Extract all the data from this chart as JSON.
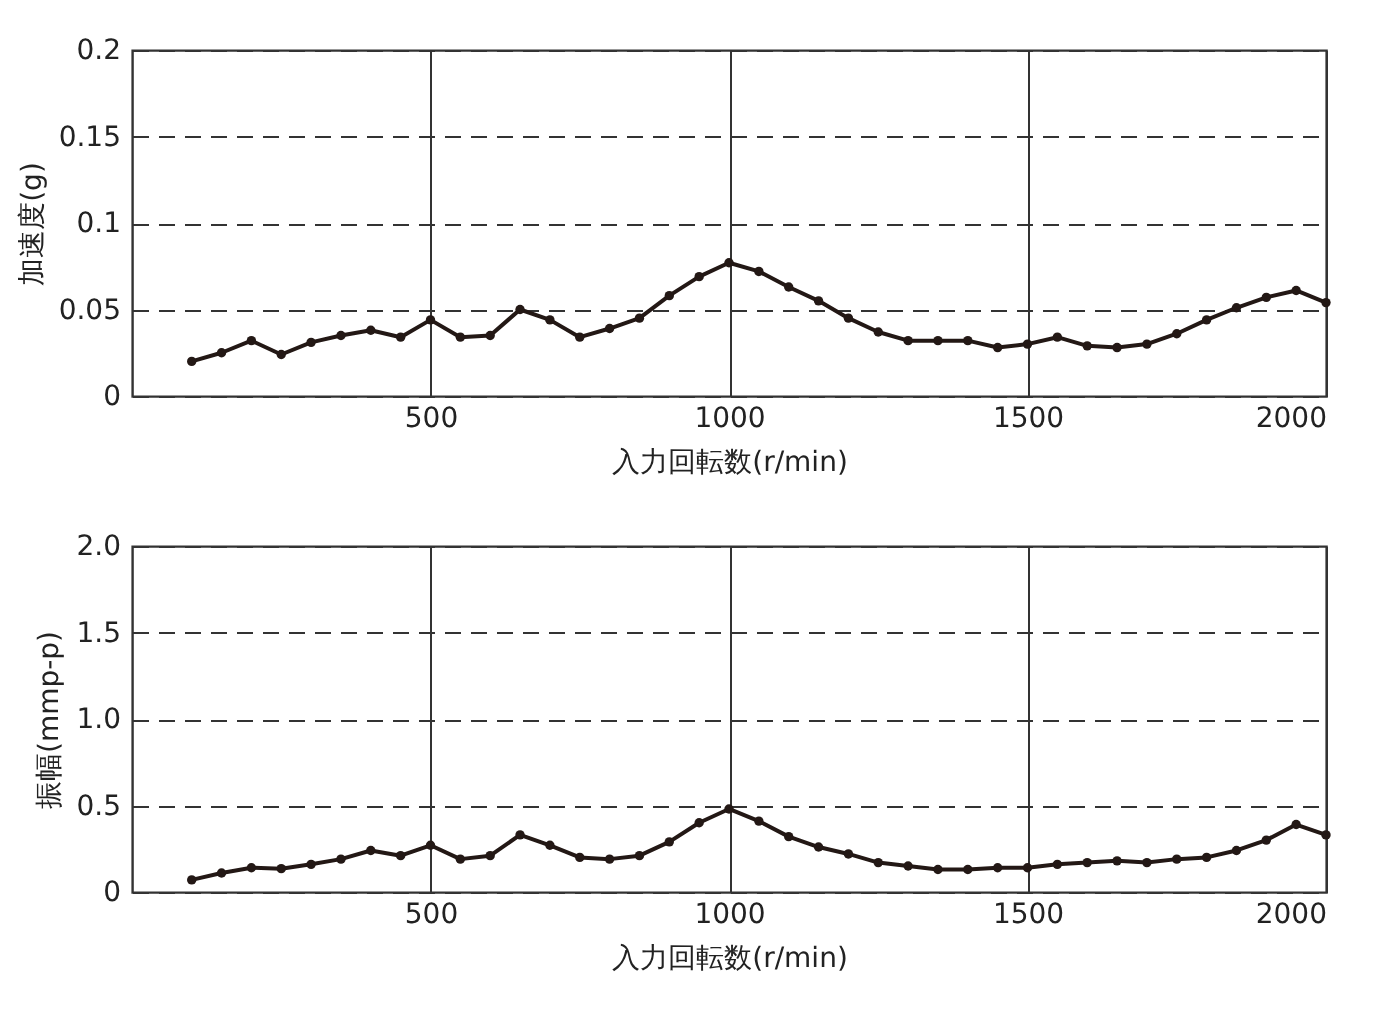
{
  "chart_data": [
    {
      "type": "line",
      "xlabel": "入力回転数(r/min)",
      "ylabel": "加速度(g)",
      "marker": "circle",
      "line_style": "solid",
      "grid": true,
      "legend": false,
      "xlim": [
        0,
        2000
      ],
      "xticks": [
        500,
        1000,
        1500,
        2000
      ],
      "ylim": [
        0,
        0.2
      ],
      "yticks": [
        0,
        0.05,
        0.1,
        0.15,
        0.2
      ],
      "x": [
        100,
        150,
        200,
        250,
        300,
        350,
        400,
        450,
        500,
        550,
        600,
        650,
        700,
        750,
        800,
        850,
        900,
        950,
        1000,
        1050,
        1100,
        1150,
        1200,
        1250,
        1300,
        1350,
        1400,
        1450,
        1500,
        1550,
        1600,
        1650,
        1700,
        1750,
        1800,
        1850,
        1900,
        1950,
        2000
      ],
      "series": [
        {
          "color": "#231815",
          "values": [
            0.02,
            0.025,
            0.032,
            0.024,
            0.031,
            0.035,
            0.038,
            0.034,
            0.044,
            0.034,
            0.035,
            0.05,
            0.044,
            0.034,
            0.039,
            0.045,
            0.058,
            0.069,
            0.077,
            0.072,
            0.063,
            0.055,
            0.045,
            0.037,
            0.032,
            0.032,
            0.032,
            0.028,
            0.03,
            0.034,
            0.029,
            0.028,
            0.03,
            0.036,
            0.044,
            0.051,
            0.057,
            0.061,
            0.054
          ]
        }
      ]
    },
    {
      "type": "line",
      "xlabel": "入力回転数(r/min)",
      "ylabel": "振幅(mmp-p)",
      "marker": "circle",
      "line_style": "solid",
      "grid": true,
      "legend": false,
      "xlim": [
        0,
        2000
      ],
      "xticks": [
        500,
        1000,
        1500,
        2000
      ],
      "ylim": [
        0,
        2.0
      ],
      "yticks": [
        0,
        {
          "value": 0.5,
          "label": "0.5"
        },
        {
          "value": 1,
          "label": "1.0"
        },
        {
          "value": 1.5,
          "label": "1.5"
        },
        {
          "value": 2,
          "label": "2.0"
        }
      ],
      "x": [
        100,
        150,
        200,
        250,
        300,
        350,
        400,
        450,
        500,
        550,
        600,
        650,
        700,
        750,
        800,
        850,
        900,
        950,
        1000,
        1050,
        1100,
        1150,
        1200,
        1250,
        1300,
        1350,
        1400,
        1450,
        1500,
        1550,
        1600,
        1650,
        1700,
        1750,
        1800,
        1850,
        1900,
        1950,
        2000
      ],
      "series": [
        {
          "color": "#231815",
          "values": [
            0.07,
            0.11,
            0.14,
            0.135,
            0.16,
            0.19,
            0.24,
            0.21,
            0.27,
            0.19,
            0.21,
            0.33,
            0.27,
            0.2,
            0.19,
            0.21,
            0.29,
            0.4,
            0.48,
            0.41,
            0.32,
            0.26,
            0.22,
            0.17,
            0.15,
            0.13,
            0.13,
            0.14,
            0.14,
            0.16,
            0.17,
            0.18,
            0.17,
            0.19,
            0.2,
            0.24,
            0.3,
            0.39,
            0.33
          ]
        }
      ]
    }
  ]
}
